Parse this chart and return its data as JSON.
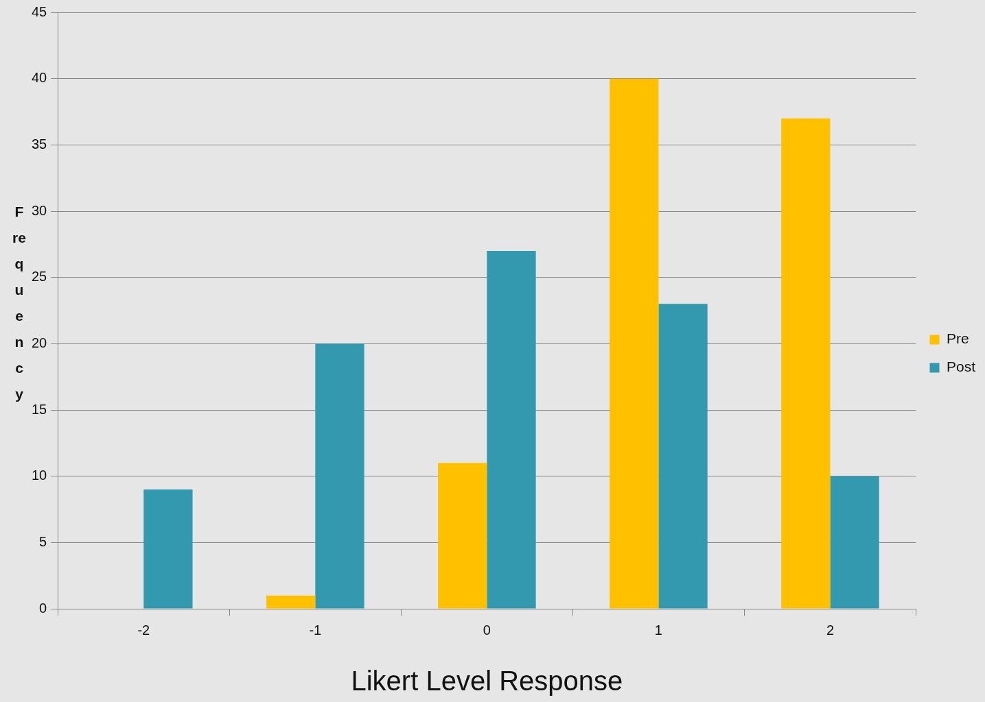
{
  "chart_data": {
    "type": "bar",
    "xlabel": "Likert Level Response",
    "ylabel": "Frequency",
    "categories": [
      "-2",
      "-1",
      "0",
      "1",
      "2"
    ],
    "series": [
      {
        "name": "Pre",
        "color": "#ffc000",
        "values": [
          0,
          1,
          11,
          40,
          37
        ]
      },
      {
        "name": "Post",
        "color": "#3399ae",
        "values": [
          9,
          20,
          27,
          23,
          10
        ]
      }
    ],
    "ylim": [
      0,
      45
    ],
    "yticks": [
      0,
      5,
      10,
      15,
      20,
      25,
      30,
      35,
      40,
      45
    ],
    "grid": "y",
    "legend": "right"
  }
}
